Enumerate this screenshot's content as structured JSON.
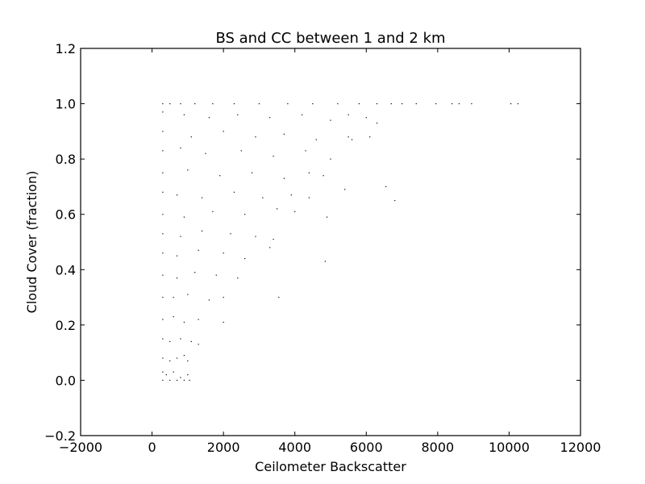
{
  "chart_data": {
    "type": "scatter",
    "title": "BS and CC between 1 and 2 km",
    "xlabel": "Ceilometer Backscatter",
    "ylabel": "Cloud Cover (fraction)",
    "xlim": [
      -2000,
      12000
    ],
    "ylim": [
      -0.2,
      1.2
    ],
    "x_ticks": [
      -2000,
      0,
      2000,
      4000,
      6000,
      8000,
      10000,
      12000
    ],
    "x_tick_labels": [
      "−2000",
      "0",
      "2000",
      "4000",
      "6000",
      "8000",
      "10000",
      "12000"
    ],
    "y_ticks": [
      -0.2,
      0.0,
      0.2,
      0.4,
      0.6,
      0.8,
      1.0,
      1.2
    ],
    "y_tick_labels": [
      "−0.2",
      "0.0",
      "0.2",
      "0.4",
      "0.6",
      "0.8",
      "1.0",
      "1.2"
    ],
    "grid": false,
    "legend": "none",
    "marker_color": "#000000",
    "series": [
      {
        "points": [
          [
            300,
            1.0
          ],
          [
            500,
            1.0
          ],
          [
            800,
            1.0
          ],
          [
            1200,
            1.0
          ],
          [
            1700,
            1.0
          ],
          [
            2300,
            1.0
          ],
          [
            3000,
            1.0
          ],
          [
            3800,
            1.0
          ],
          [
            4500,
            1.0
          ],
          [
            5200,
            1.0
          ],
          [
            5800,
            1.0
          ],
          [
            6300,
            1.0
          ],
          [
            6700,
            1.0
          ],
          [
            7000,
            1.0
          ],
          [
            7400,
            1.0
          ],
          [
            7950,
            1.0
          ],
          [
            8400,
            1.0
          ],
          [
            8600,
            1.0
          ],
          [
            8950,
            1.0
          ],
          [
            10050,
            1.0
          ],
          [
            10250,
            1.0
          ],
          [
            300,
            0.97
          ],
          [
            900,
            0.96
          ],
          [
            1600,
            0.95
          ],
          [
            2400,
            0.96
          ],
          [
            3300,
            0.95
          ],
          [
            4200,
            0.96
          ],
          [
            5000,
            0.94
          ],
          [
            5500,
            0.96
          ],
          [
            6000,
            0.95
          ],
          [
            6300,
            0.93
          ],
          [
            300,
            0.9
          ],
          [
            1100,
            0.88
          ],
          [
            2000,
            0.9
          ],
          [
            2900,
            0.88
          ],
          [
            3700,
            0.89
          ],
          [
            4600,
            0.87
          ],
          [
            5500,
            0.88
          ],
          [
            5600,
            0.87
          ],
          [
            6100,
            0.88
          ],
          [
            300,
            0.83
          ],
          [
            800,
            0.84
          ],
          [
            1500,
            0.82
          ],
          [
            2500,
            0.83
          ],
          [
            3400,
            0.81
          ],
          [
            4300,
            0.83
          ],
          [
            5000,
            0.8
          ],
          [
            300,
            0.75
          ],
          [
            1000,
            0.76
          ],
          [
            1900,
            0.74
          ],
          [
            2800,
            0.75
          ],
          [
            3700,
            0.73
          ],
          [
            4400,
            0.75
          ],
          [
            4800,
            0.74
          ],
          [
            5400,
            0.69
          ],
          [
            6550,
            0.7
          ],
          [
            6800,
            0.65
          ],
          [
            300,
            0.68
          ],
          [
            700,
            0.67
          ],
          [
            1400,
            0.66
          ],
          [
            2300,
            0.68
          ],
          [
            3100,
            0.66
          ],
          [
            3900,
            0.67
          ],
          [
            4400,
            0.66
          ],
          [
            300,
            0.6
          ],
          [
            900,
            0.59
          ],
          [
            1700,
            0.61
          ],
          [
            2600,
            0.6
          ],
          [
            3500,
            0.62
          ],
          [
            4000,
            0.61
          ],
          [
            4900,
            0.59
          ],
          [
            300,
            0.53
          ],
          [
            800,
            0.52
          ],
          [
            1400,
            0.54
          ],
          [
            2200,
            0.53
          ],
          [
            2900,
            0.52
          ],
          [
            3400,
            0.51
          ],
          [
            300,
            0.46
          ],
          [
            700,
            0.45
          ],
          [
            1300,
            0.47
          ],
          [
            2000,
            0.46
          ],
          [
            2600,
            0.44
          ],
          [
            3300,
            0.48
          ],
          [
            4850,
            0.43
          ],
          [
            300,
            0.38
          ],
          [
            700,
            0.37
          ],
          [
            1200,
            0.39
          ],
          [
            1800,
            0.38
          ],
          [
            2400,
            0.37
          ],
          [
            300,
            0.3
          ],
          [
            600,
            0.3
          ],
          [
            1000,
            0.31
          ],
          [
            1600,
            0.29
          ],
          [
            2000,
            0.3
          ],
          [
            3550,
            0.3
          ],
          [
            300,
            0.22
          ],
          [
            600,
            0.23
          ],
          [
            900,
            0.21
          ],
          [
            1300,
            0.22
          ],
          [
            2000,
            0.21
          ],
          [
            300,
            0.15
          ],
          [
            500,
            0.14
          ],
          [
            800,
            0.15
          ],
          [
            1100,
            0.14
          ],
          [
            1300,
            0.13
          ],
          [
            300,
            0.08
          ],
          [
            500,
            0.07
          ],
          [
            700,
            0.08
          ],
          [
            900,
            0.09
          ],
          [
            1000,
            0.07
          ],
          [
            300,
            0.03
          ],
          [
            400,
            0.02
          ],
          [
            600,
            0.03
          ],
          [
            800,
            0.01
          ],
          [
            1000,
            0.02
          ],
          [
            300,
            0.0
          ],
          [
            500,
            0.0
          ],
          [
            700,
            0.0
          ],
          [
            900,
            0.0
          ],
          [
            1050,
            0.0
          ]
        ]
      }
    ]
  }
}
